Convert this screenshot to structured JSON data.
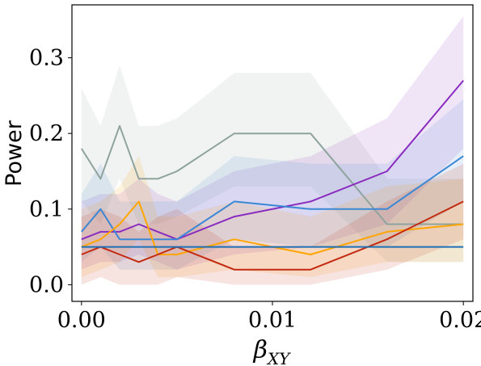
{
  "chart_data": {
    "type": "line",
    "xlabel": "β",
    "xlabel_sub": "XY",
    "ylabel": "Power",
    "xlim": [
      -0.0005,
      0.0205
    ],
    "ylim": [
      -0.022,
      0.37
    ],
    "x_ticks": [
      0.0,
      0.01,
      0.02
    ],
    "x_tick_labels": [
      "0.00",
      "0.01",
      "0.02"
    ],
    "y_ticks": [
      0.0,
      0.1,
      0.2,
      0.3
    ],
    "y_tick_labels": [
      "0.0",
      "0.1",
      "0.2",
      "0.3"
    ],
    "grid": false,
    "legend": false,
    "series": [
      {
        "color": "#8fa39e",
        "x": [
          0.0,
          0.001,
          0.002,
          0.003,
          0.004,
          0.005,
          0.008,
          0.012,
          0.016,
          0.02
        ],
        "y": [
          0.18,
          0.14,
          0.21,
          0.14,
          0.14,
          0.15,
          0.2,
          0.2,
          0.08,
          0.08
        ],
        "lower": [
          0.11,
          0.08,
          0.14,
          0.08,
          0.08,
          0.09,
          0.13,
          0.13,
          0.03,
          0.03
        ],
        "upper": [
          0.26,
          0.21,
          0.29,
          0.21,
          0.21,
          0.22,
          0.28,
          0.28,
          0.14,
          0.14
        ]
      },
      {
        "color": "#8a2cbf",
        "x": [
          0.0,
          0.001,
          0.002,
          0.003,
          0.004,
          0.005,
          0.008,
          0.012,
          0.016,
          0.02
        ],
        "y": [
          0.06,
          0.07,
          0.07,
          0.08,
          0.07,
          0.06,
          0.09,
          0.11,
          0.15,
          0.27
        ],
        "lower": [
          0.02,
          0.03,
          0.03,
          0.04,
          0.03,
          0.02,
          0.04,
          0.05,
          0.08,
          0.18
        ],
        "upper": [
          0.11,
          0.12,
          0.12,
          0.14,
          0.12,
          0.11,
          0.15,
          0.17,
          0.22,
          0.355
        ]
      },
      {
        "color": "#3b87d4",
        "x": [
          0.0,
          0.001,
          0.002,
          0.003,
          0.004,
          0.005,
          0.008,
          0.012,
          0.016,
          0.02
        ],
        "y": [
          0.07,
          0.1,
          0.06,
          0.06,
          0.06,
          0.06,
          0.11,
          0.1,
          0.1,
          0.17
        ],
        "lower": [
          0.03,
          0.05,
          0.02,
          0.02,
          0.02,
          0.02,
          0.06,
          0.05,
          0.05,
          0.11
        ],
        "upper": [
          0.12,
          0.16,
          0.11,
          0.11,
          0.11,
          0.11,
          0.17,
          0.16,
          0.16,
          0.245
        ]
      },
      {
        "color": "#ffa500",
        "x": [
          0.0,
          0.001,
          0.002,
          0.003,
          0.004,
          0.005,
          0.008,
          0.012,
          0.016,
          0.02
        ],
        "y": [
          0.05,
          0.06,
          0.08,
          0.11,
          0.04,
          0.04,
          0.06,
          0.04,
          0.07,
          0.08
        ],
        "lower": [
          0.01,
          0.02,
          0.03,
          0.06,
          0.01,
          0.01,
          0.02,
          0.01,
          0.03,
          0.03
        ],
        "upper": [
          0.1,
          0.11,
          0.13,
          0.17,
          0.09,
          0.09,
          0.11,
          0.09,
          0.13,
          0.14
        ]
      },
      {
        "color": "#c42a10",
        "x": [
          0.0,
          0.001,
          0.002,
          0.003,
          0.004,
          0.005,
          0.008,
          0.012,
          0.016,
          0.02
        ],
        "y": [
          0.04,
          0.05,
          0.04,
          0.03,
          0.04,
          0.05,
          0.02,
          0.02,
          0.06,
          0.11
        ],
        "lower": [
          0.0,
          0.01,
          0.0,
          0.0,
          0.0,
          0.01,
          0.0,
          0.0,
          0.02,
          0.06
        ],
        "upper": [
          0.09,
          0.1,
          0.09,
          0.07,
          0.09,
          0.1,
          0.05,
          0.05,
          0.11,
          0.16
        ]
      },
      {
        "color": "#1f6fb4",
        "x": [
          0.0,
          0.02
        ],
        "y": [
          0.05,
          0.05
        ]
      }
    ]
  }
}
